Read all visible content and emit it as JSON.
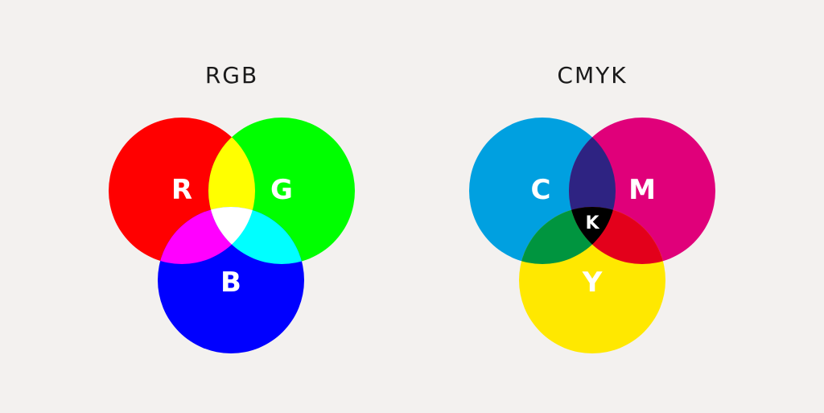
{
  "background_color": "#f3f1ef",
  "rgb_diagram": {
    "title": "RGB",
    "circles": [
      {
        "label": "R",
        "color": "#ff0000"
      },
      {
        "label": "G",
        "color": "#00ff00"
      },
      {
        "label": "B",
        "color": "#0000ff"
      }
    ],
    "overlaps": {
      "r_g": "#ffff00",
      "r_b": "#ff00ff",
      "g_b": "#00ffff",
      "center": "#ffffff"
    }
  },
  "cmyk_diagram": {
    "title": "CMYK",
    "circles": [
      {
        "label": "C",
        "color": "#00a0e0"
      },
      {
        "label": "M",
        "color": "#e0007a"
      },
      {
        "label": "Y",
        "color": "#ffe800"
      }
    ],
    "overlaps": {
      "c_m": "#2e2382",
      "c_y": "#00953f",
      "m_y": "#e3001b",
      "center": "#000000"
    },
    "center_label": "K"
  }
}
